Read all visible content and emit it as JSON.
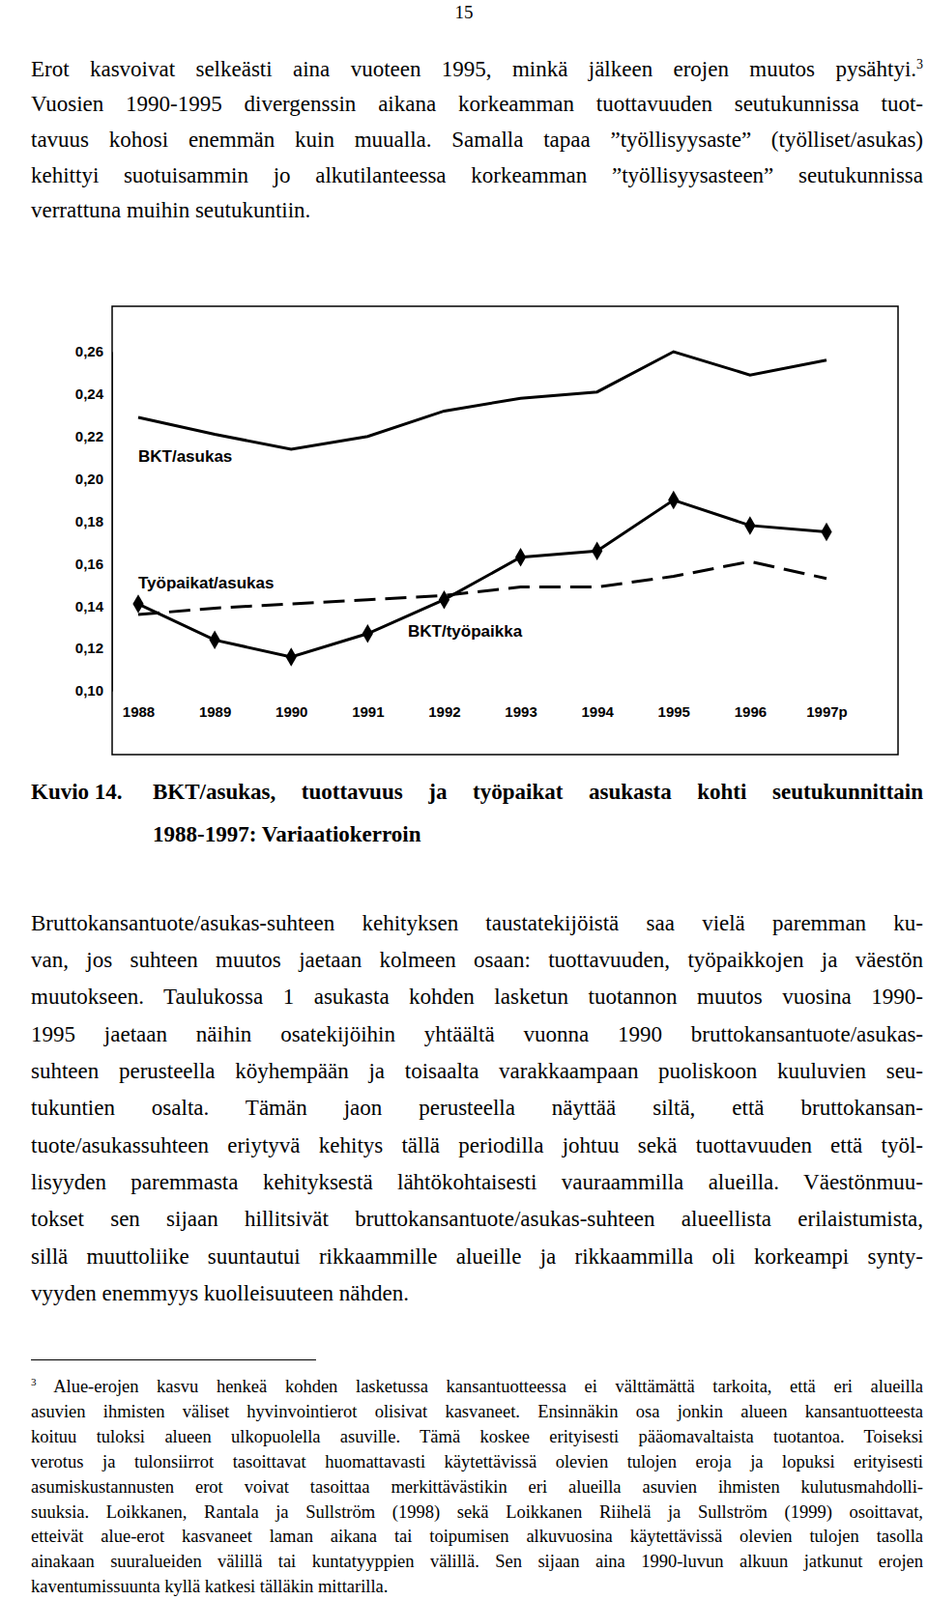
{
  "page_number": "15",
  "paragraphs_before": [
    {
      "lines": [
        "Erot kasvoivat selkeästi aina vuoteen 1995, minkä jälkeen erojen muutos pysähtyi.",
        "Vuosien 1990-1995 divergenssin aikana korkeamman tuottavuuden seutukunnissa tuot-",
        "tavuus kohosi enemmän kuin muualla. Samalla tapaa ”työllisyysaste” (työlliset/asukas)",
        "kehittyi suotuisammin jo alkutilanteessa korkeamman ”työllisyysasteen” seutukunnissa",
        "verrattuna muihin seutukuntiin."
      ],
      "note_ref": "3"
    }
  ],
  "chart_data": {
    "type": "line",
    "categories": [
      "1988",
      "1989",
      "1990",
      "1991",
      "1992",
      "1993",
      "1994",
      "1995",
      "1996",
      "1997p"
    ],
    "ylim": [
      0.1,
      0.26
    ],
    "yticks": [
      {
        "value": 0.1,
        "label": "0,10"
      },
      {
        "value": 0.12,
        "label": "0,12"
      },
      {
        "value": 0.14,
        "label": "0,14"
      },
      {
        "value": 0.16,
        "label": "0,16"
      },
      {
        "value": 0.18,
        "label": "0,18"
      },
      {
        "value": 0.2,
        "label": "0,20"
      },
      {
        "value": 0.22,
        "label": "0,22"
      },
      {
        "value": 0.24,
        "label": "0,24"
      },
      {
        "value": 0.26,
        "label": "0,26"
      }
    ],
    "grid": false,
    "series": [
      {
        "name": "BKT/asukas",
        "color": "#000000",
        "marker": "none",
        "line_style": "solid",
        "values": [
          0.229,
          0.221,
          0.214,
          0.22,
          0.232,
          0.238,
          0.241,
          0.26,
          0.249,
          0.256
        ]
      },
      {
        "name": "Työpaikat/asukas",
        "color": "#000000",
        "marker": "none",
        "line_style": "dashed",
        "values": [
          0.136,
          0.139,
          0.141,
          0.143,
          0.145,
          0.149,
          0.149,
          0.154,
          0.161,
          0.153
        ]
      },
      {
        "name": "BKT/työpaikka",
        "color": "#000000",
        "marker": "diamond",
        "line_style": "solid",
        "values": [
          0.141,
          0.124,
          0.116,
          0.127,
          0.143,
          0.163,
          0.166,
          0.19,
          0.178,
          0.175
        ]
      }
    ]
  },
  "caption": {
    "label": "Kuvio 14.",
    "lines": [
      "BKT/asukas, tuottavuus ja työpaikat asukasta kohti seutukunnittain",
      "1988-1997: Variaatiokerroin"
    ]
  },
  "paragraphs_after": [
    {
      "lines": [
        "Bruttokansantuote/asukas-suhteen kehityksen taustatekijöistä saa vielä paremman ku-",
        "van, jos suhteen muutos jaetaan kolmeen osaan: tuottavuuden, työpaikkojen ja väestön",
        "muutokseen. Taulukossa 1 asukasta kohden lasketun tuotannon muutos vuosina 1990-",
        "1995 jaetaan näihin osatekijöihin  yhtäältä vuonna 1990 bruttokansantuote/asukas-",
        "suhteen perusteella köyhempään ja toisaalta varakkaampaan puoliskoon kuuluvien seu-",
        "tukuntien osalta. Tämän jaon perusteella näyttää siltä, että bruttokansan-",
        "tuote/asukassuhteen eriytyvä kehitys tällä periodilla johtuu sekä tuottavuuden että työl-",
        "lisyyden paremmasta kehityksestä lähtökohtaisesti vauraammilla alueilla. Väestönmuu-",
        "tokset sen sijaan hillitsivät bruttokansantuote/asukas-suhteen alueellista erilaistumista,",
        "sillä muuttoliike suuntautui rikkaammille alueille ja rikkaammilla oli korkeampi synty-",
        "vyyden enemmyys kuolleisuuteen nähden."
      ]
    }
  ],
  "footnotes": [
    {
      "marker": "3",
      "lines": [
        "Alue-erojen kasvu henkeä kohden lasketussa kansantuotteessa ei välttämättä tarkoita, että eri alueilla",
        "asuvien ihmisten väliset hyvinvointierot olisivat kasvaneet. Ensinnäkin osa jonkin alueen kansantuotteesta",
        "koituu tuloksi alueen ulkopuolella asuville. Tämä koskee erityisesti pääomavaltaista tuotantoa. Toiseksi",
        "verotus ja tulonsiirrot tasoittavat huomattavasti käytettävissä olevien tulojen eroja ja lopuksi erityisesti",
        "asumiskustannusten erot voivat tasoittaa merkittävästikin eri alueilla asuvien ihmisten kulutusmahdolli-",
        "suuksia. Loikkanen, Rantala ja Sullström (1998) sekä Loikkanen Riihelä ja Sullström (1999) osoittavat,",
        "etteivät alue-erot kasvaneet laman aikana tai toipumisen alkuvuosina käytettävissä olevien tulojen tasolla",
        "ainakaan suuralueiden välillä tai kuntatyyppien välillä. Sen sijaan aina 1990-luvun alkuun jatkunut erojen",
        "kaventumissuunta kyllä katkesi tälläkin mittarilla."
      ]
    }
  ]
}
